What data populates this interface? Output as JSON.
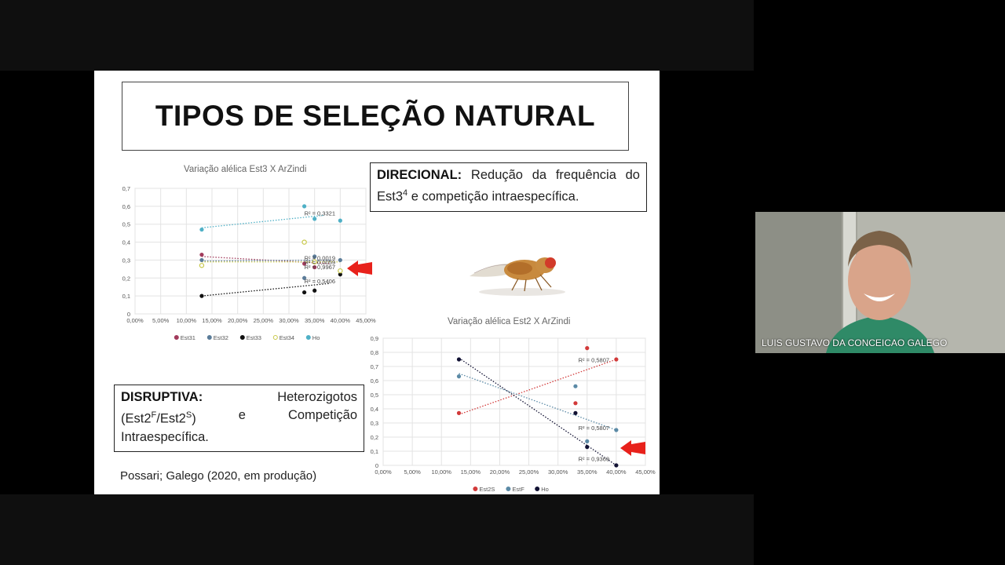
{
  "slide": {
    "title": "TIPOS DE SELEÇÃO NATURAL",
    "direcional": {
      "heading": "DIRECIONAL:",
      "text1": " Redução da frequência do Est3",
      "sup": "4",
      "text2": " e competição intraespecífica."
    },
    "disruptiva": {
      "heading": "DISRUPTIVA:",
      "word_heterozigotos": "Heterozigotos",
      "paren_open": "(Est2",
      "sup_f": "F",
      "slash": "/Est2",
      "sup_s": "S",
      "paren_close": ")",
      "word_e": "e",
      "word_competicao": "Competição",
      "word_intra": "Intraespecífica."
    },
    "citation": "Possari; Galego (2020, em produção)"
  },
  "webcam": {
    "participant_name": "LUIS GUSTAVO DA CONCEICAO GALEGO"
  },
  "chart_data": [
    {
      "type": "scatter",
      "title": "Variação alélica Est3 X ArZindi",
      "xlabel": "",
      "ylabel": "",
      "xlim": [
        0,
        0.45
      ],
      "ylim": [
        0,
        0.7
      ],
      "x_ticks": [
        "0,00%",
        "5,00%",
        "10,00%",
        "15,00%",
        "20,00%",
        "25,00%",
        "30,00%",
        "35,00%",
        "40,00%",
        "45,00%"
      ],
      "y_ticks": [
        "0",
        "0,1",
        "0,2",
        "0,3",
        "0,4",
        "0,5",
        "0,6",
        "0,7"
      ],
      "grid": true,
      "legend_position": "bottom",
      "series": [
        {
          "name": "Est31",
          "color": "#a23b5c",
          "points": [
            [
              0.13,
              0.33
            ],
            [
              0.33,
              0.28
            ],
            [
              0.35,
              0.26
            ]
          ],
          "trend": [
            [
              0.13,
              0.32
            ],
            [
              0.38,
              0.28
            ]
          ]
        },
        {
          "name": "Est32",
          "color": "#5b7c99",
          "points": [
            [
              0.13,
              0.3
            ],
            [
              0.33,
              0.2
            ],
            [
              0.35,
              0.32
            ],
            [
              0.4,
              0.3
            ]
          ],
          "trend": [
            [
              0.13,
              0.295
            ],
            [
              0.38,
              0.3
            ]
          ]
        },
        {
          "name": "Est33",
          "color": "#111111",
          "points": [
            [
              0.13,
              0.1
            ],
            [
              0.33,
              0.12
            ],
            [
              0.35,
              0.13
            ],
            [
              0.4,
              0.22
            ]
          ],
          "trend": [
            [
              0.13,
              0.1
            ],
            [
              0.38,
              0.17
            ]
          ]
        },
        {
          "name": "Est34",
          "color": "#c8c84a",
          "points": [
            [
              0.13,
              0.27
            ],
            [
              0.33,
              0.4
            ],
            [
              0.35,
              0.29
            ],
            [
              0.4,
              0.24
            ]
          ],
          "trend": [
            [
              0.13,
              0.29
            ],
            [
              0.4,
              0.29
            ]
          ]
        },
        {
          "name": "Ho",
          "color": "#4fb0c6",
          "points": [
            [
              0.13,
              0.47
            ],
            [
              0.33,
              0.6
            ],
            [
              0.35,
              0.53
            ],
            [
              0.4,
              0.52
            ]
          ],
          "trend": [
            [
              0.13,
              0.48
            ],
            [
              0.37,
              0.55
            ]
          ]
        }
      ],
      "annotations": [
        {
          "text": "R² = 0,3321",
          "x": 0.33,
          "y": 0.55
        },
        {
          "text": "R² = 0,0019",
          "x": 0.33,
          "y": 0.3
        },
        {
          "text": "R² = 0,0059",
          "x": 0.33,
          "y": 0.275
        },
        {
          "text": "R² = 0,9967",
          "x": 0.33,
          "y": 0.25
        },
        {
          "text": "R² = 0,5406",
          "x": 0.33,
          "y": 0.17
        }
      ]
    },
    {
      "type": "scatter",
      "title": "Variação alélica Est2 X ArZindi",
      "xlabel": "",
      "ylabel": "",
      "xlim": [
        0,
        0.45
      ],
      "ylim": [
        0,
        0.9
      ],
      "x_ticks": [
        "0,00%",
        "5,00%",
        "10,00%",
        "15,00%",
        "20,00%",
        "25,00%",
        "30,00%",
        "35,00%",
        "40,00%",
        "45,00%"
      ],
      "y_ticks": [
        "0",
        "0,1",
        "0,2",
        "0,3",
        "0,4",
        "0,5",
        "0,6",
        "0,7",
        "0,8",
        "0,9"
      ],
      "grid": true,
      "legend_position": "bottom",
      "series": [
        {
          "name": "Est2S",
          "color": "#d23a3a",
          "points": [
            [
              0.13,
              0.37
            ],
            [
              0.33,
              0.44
            ],
            [
              0.35,
              0.83
            ],
            [
              0.4,
              0.75
            ]
          ],
          "trend": [
            [
              0.13,
              0.36
            ],
            [
              0.4,
              0.75
            ]
          ]
        },
        {
          "name": "EstF",
          "color": "#5b8aa6",
          "points": [
            [
              0.13,
              0.63
            ],
            [
              0.33,
              0.56
            ],
            [
              0.35,
              0.17
            ],
            [
              0.4,
              0.25
            ]
          ],
          "trend": [
            [
              0.13,
              0.65
            ],
            [
              0.4,
              0.25
            ]
          ]
        },
        {
          "name": "Ho",
          "color": "#111133",
          "points": [
            [
              0.13,
              0.75
            ],
            [
              0.33,
              0.37
            ],
            [
              0.35,
              0.13
            ],
            [
              0.4,
              0.0
            ]
          ],
          "trend": [
            [
              0.13,
              0.76
            ],
            [
              0.4,
              0.0
            ]
          ]
        }
      ],
      "annotations": [
        {
          "text": "R² = 0,5807",
          "x": 0.335,
          "y": 0.73
        },
        {
          "text": "R² = 0,5807",
          "x": 0.335,
          "y": 0.25
        },
        {
          "text": "R² = 0,9369",
          "x": 0.335,
          "y": 0.03
        }
      ]
    }
  ]
}
